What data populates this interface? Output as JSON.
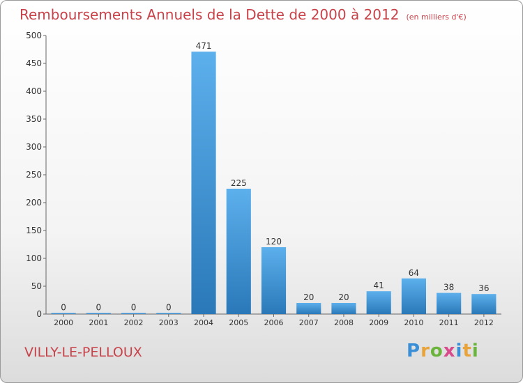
{
  "title": "Remboursements Annuels de la Dette de 2000 à 2012",
  "unit_label": "(en milliers d'€)",
  "commune": "VILLY-LE-PELLOUX",
  "logo": {
    "letters": [
      "P",
      "r",
      "o",
      "x",
      "i",
      "t",
      "i"
    ],
    "colors": [
      "#3a8fd6",
      "#e8a33a",
      "#6ab43c",
      "#d94a8c",
      "#3a8fd6",
      "#e8a33a",
      "#6ab43c"
    ]
  },
  "chart_data": {
    "type": "bar",
    "categories": [
      "2000",
      "2001",
      "2002",
      "2003",
      "2004",
      "2005",
      "2006",
      "2007",
      "2008",
      "2009",
      "2010",
      "2011",
      "2012"
    ],
    "values": [
      0,
      0,
      0,
      0,
      471,
      225,
      120,
      20,
      20,
      41,
      64,
      38,
      36
    ],
    "ylim": [
      0,
      500
    ],
    "yticks": [
      0,
      50,
      100,
      150,
      200,
      250,
      300,
      350,
      400,
      450,
      500
    ],
    "grid": false,
    "bar_color": "#3c98dc"
  }
}
